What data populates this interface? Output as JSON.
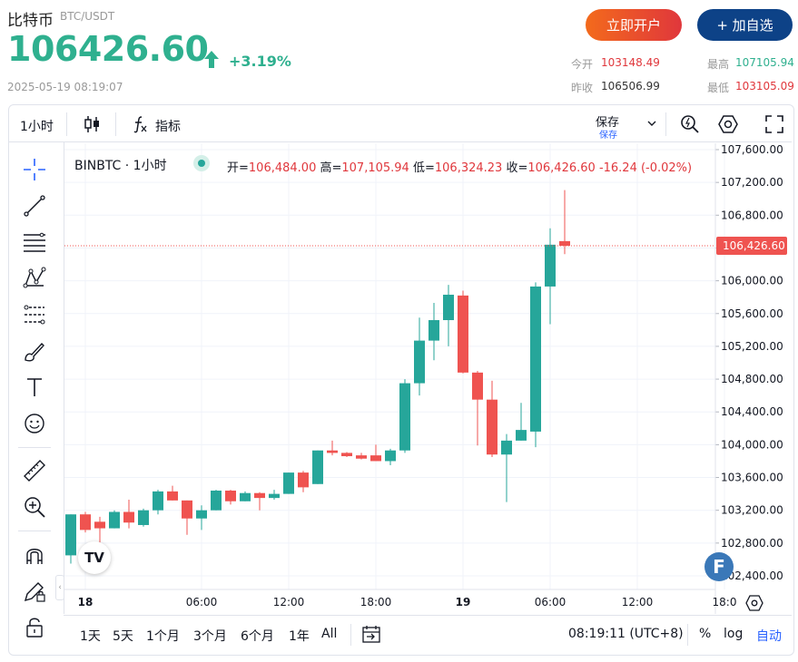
{
  "header": {
    "name": "比特币",
    "pair": "BTC/USDT",
    "price": "106426.60",
    "change": "+3.19%",
    "timestamp": "2025-05-19 08:19:07",
    "open_account_label": "立即开户",
    "add_watch_label": "+ 加自选"
  },
  "stats": {
    "open_label": "今开",
    "open_value": "103148.49",
    "high_label": "最高",
    "high_value": "107105.94",
    "prev_close_label": "昨收",
    "prev_close_value": "106506.99",
    "low_label": "最低",
    "low_value": "103105.09"
  },
  "toolbar": {
    "interval": "1小时",
    "indicators_label": "指标",
    "save_label": "保存",
    "save_sub_label": "保存"
  },
  "legend": {
    "symbol": "BINBTC · 1小时",
    "open_label": "开=",
    "open_value": "106,484.00",
    "high_label": "高=",
    "high_value": "107,105.94",
    "low_label": "低=",
    "low_value": "106,324.23",
    "close_label": "收=",
    "close_value": "106,426.60",
    "change_value": "-16.24 (-0.02%)"
  },
  "bottom_bar": {
    "ranges": [
      "1天",
      "5天",
      "1个月",
      "3个月",
      "6个月",
      "1年",
      "All"
    ],
    "clock": "08:19:11 (UTC+8)",
    "percent_label": "%",
    "log_label": "log",
    "auto_label": "自动"
  },
  "watermark_text": "TV",
  "colors": {
    "up": "#26a69a",
    "down": "#ef5350",
    "up_text": "#2fb08f",
    "down_text": "#e0373c",
    "brand_orange": "#f36a1c",
    "brand_blue": "#0d4287"
  },
  "chart_data": {
    "type": "candlestick",
    "title": "BINBTC · 1小时",
    "y_ticks": [
      "107,600.00",
      "107,200.00",
      "106,800.00",
      "106,400.00",
      "106,000.00",
      "105,600.00",
      "105,200.00",
      "104,800.00",
      "104,400.00",
      "104,000.00",
      "103,600.00",
      "103,200.00",
      "102,800.00",
      "102,400.00"
    ],
    "y_tick_values": [
      107600,
      107200,
      106800,
      106400,
      106000,
      105600,
      105200,
      104800,
      104400,
      104000,
      103600,
      103200,
      102800,
      102400
    ],
    "x_ticks": [
      "18",
      "06:00",
      "12:00",
      "18:00",
      "19",
      "06:00",
      "12:00",
      "18:0"
    ],
    "x_tick_index": [
      1,
      9,
      15,
      21,
      27,
      33,
      39,
      45
    ],
    "last_price_label": "106,426.60",
    "last_price": 106426.6,
    "candles": [
      {
        "o": 102650,
        "h": 103150,
        "l": 102550,
        "c": 103150
      },
      {
        "o": 103150,
        "h": 103180,
        "l": 102930,
        "c": 102960
      },
      {
        "o": 103060,
        "h": 103120,
        "l": 102750,
        "c": 102980
      },
      {
        "o": 102980,
        "h": 103200,
        "l": 102980,
        "c": 103180
      },
      {
        "o": 103180,
        "h": 103330,
        "l": 102980,
        "c": 103050
      },
      {
        "o": 103020,
        "h": 103220,
        "l": 103000,
        "c": 103200
      },
      {
        "o": 103200,
        "h": 103450,
        "l": 103150,
        "c": 103430
      },
      {
        "o": 103430,
        "h": 103500,
        "l": 103320,
        "c": 103320
      },
      {
        "o": 103320,
        "h": 103320,
        "l": 102900,
        "c": 103100
      },
      {
        "o": 103100,
        "h": 103260,
        "l": 102960,
        "c": 103200
      },
      {
        "o": 103200,
        "h": 103450,
        "l": 103200,
        "c": 103440
      },
      {
        "o": 103440,
        "h": 103450,
        "l": 103270,
        "c": 103310
      },
      {
        "o": 103310,
        "h": 103430,
        "l": 103310,
        "c": 103410
      },
      {
        "o": 103410,
        "h": 103420,
        "l": 103200,
        "c": 103350
      },
      {
        "o": 103350,
        "h": 103450,
        "l": 103330,
        "c": 103400
      },
      {
        "o": 103400,
        "h": 103660,
        "l": 103400,
        "c": 103660
      },
      {
        "o": 103660,
        "h": 103680,
        "l": 103420,
        "c": 103480
      },
      {
        "o": 103520,
        "h": 103930,
        "l": 103520,
        "c": 103930
      },
      {
        "o": 103930,
        "h": 104050,
        "l": 103870,
        "c": 103900
      },
      {
        "o": 103900,
        "h": 103910,
        "l": 103850,
        "c": 103860
      },
      {
        "o": 103870,
        "h": 103900,
        "l": 103820,
        "c": 103830
      },
      {
        "o": 103870,
        "h": 104000,
        "l": 103800,
        "c": 103800
      },
      {
        "o": 103800,
        "h": 103950,
        "l": 103750,
        "c": 103930
      },
      {
        "o": 103930,
        "h": 104800,
        "l": 103900,
        "c": 104750
      },
      {
        "o": 104750,
        "h": 105550,
        "l": 104600,
        "c": 105270
      },
      {
        "o": 105270,
        "h": 105730,
        "l": 105030,
        "c": 105520
      },
      {
        "o": 105520,
        "h": 105950,
        "l": 105200,
        "c": 105830
      },
      {
        "o": 105820,
        "h": 105880,
        "l": 104870,
        "c": 104880
      },
      {
        "o": 104880,
        "h": 104900,
        "l": 103990,
        "c": 104550
      },
      {
        "o": 104550,
        "h": 104780,
        "l": 103850,
        "c": 103880
      },
      {
        "o": 103880,
        "h": 104130,
        "l": 103300,
        "c": 104050
      },
      {
        "o": 104050,
        "h": 104510,
        "l": 104050,
        "c": 104180
      },
      {
        "o": 104160,
        "h": 105980,
        "l": 103970,
        "c": 105930
      },
      {
        "o": 105930,
        "h": 106640,
        "l": 105470,
        "c": 106440
      },
      {
        "o": 106484,
        "h": 107105.94,
        "l": 106324.23,
        "c": 106426.6
      }
    ]
  }
}
